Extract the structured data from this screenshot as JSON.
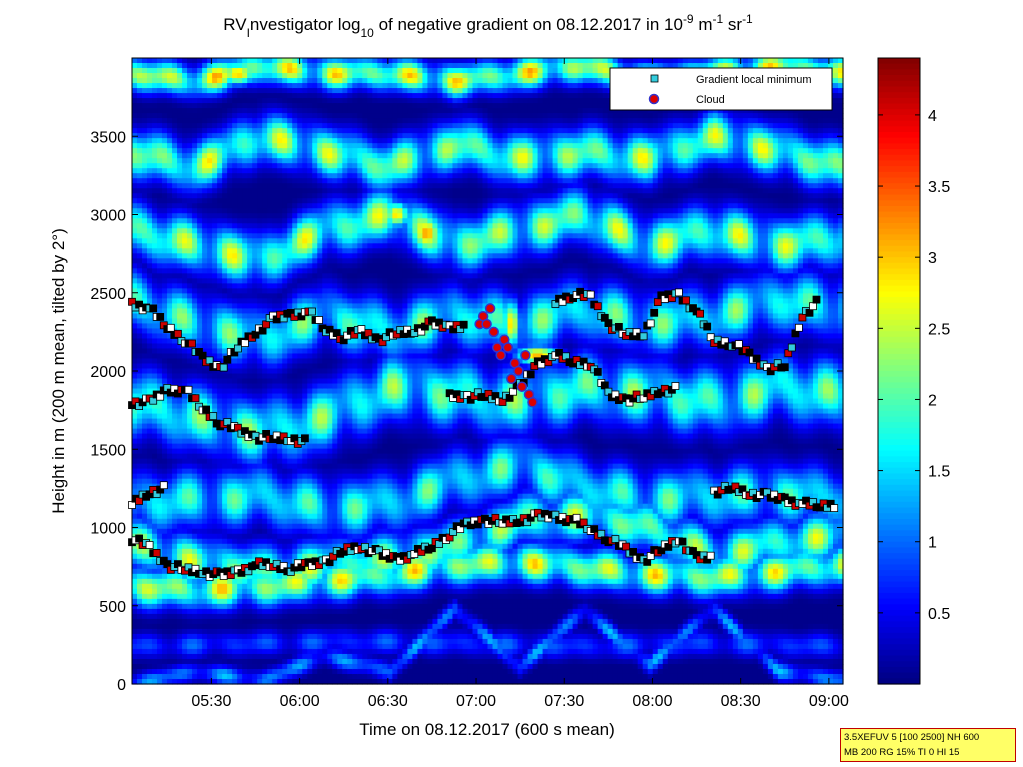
{
  "chart_data": {
    "type": "heatmap",
    "title_parts": {
      "prefix": "RV",
      "prefix_sub": "I",
      "part1": "nvestigator log",
      "sub1": "10",
      "part2": " of negative gradient on 08.12.2017 in 10",
      "sup1": "-9",
      "part3": " m",
      "sup2": "-1",
      "part4": " sr",
      "sup3": "-1"
    },
    "xlabel": "Time on 08.12.2017 (600 s mean)",
    "ylabel": "Height in m (200 m mean, tilted by 2°)",
    "x_unit": "hours",
    "xlim": [
      5.05,
      9.08
    ],
    "ylim": [
      0,
      4000
    ],
    "xticks": [
      {
        "v": 5.5,
        "label": "05:30"
      },
      {
        "v": 6.0,
        "label": "06:00"
      },
      {
        "v": 6.5,
        "label": "06:30"
      },
      {
        "v": 7.0,
        "label": "07:00"
      },
      {
        "v": 7.5,
        "label": "07:30"
      },
      {
        "v": 8.0,
        "label": "08:00"
      },
      {
        "v": 8.5,
        "label": "08:30"
      },
      {
        "v": 9.0,
        "label": "09:00"
      }
    ],
    "yticks": [
      {
        "v": 0,
        "label": "0"
      },
      {
        "v": 500,
        "label": "500"
      },
      {
        "v": 1000,
        "label": "1000"
      },
      {
        "v": 1500,
        "label": "1500"
      },
      {
        "v": 2000,
        "label": "2000"
      },
      {
        "v": 2500,
        "label": "2500"
      },
      {
        "v": 3000,
        "label": "3000"
      },
      {
        "v": 3500,
        "label": "3500"
      }
    ],
    "colorbar": {
      "range": [
        0,
        4.4
      ],
      "ticks": [
        {
          "v": 0.5,
          "label": "0.5"
        },
        {
          "v": 1,
          "label": "1"
        },
        {
          "v": 1.5,
          "label": "1.5"
        },
        {
          "v": 2,
          "label": "2"
        },
        {
          "v": 2.5,
          "label": "2.5"
        },
        {
          "v": 3,
          "label": "3"
        },
        {
          "v": 3.5,
          "label": "3.5"
        },
        {
          "v": 4,
          "label": "4"
        }
      ],
      "colormap": "jet"
    },
    "legend": {
      "position": "top-right",
      "items": [
        {
          "label": "Gradient local minimum",
          "marker": "square",
          "color": "#33ccdd"
        },
        {
          "label": "Cloud",
          "marker": "circle",
          "color": "#dd0000"
        }
      ]
    },
    "bands": [
      {
        "y": [
          0,
          80,
          20,
          180,
          80,
          480,
          110,
          470,
          120,
          480,
          80,
          20
        ],
        "v": 1.2,
        "thk": 60
      },
      {
        "y": [
          240,
          250,
          260,
          270,
          270,
          260,
          250,
          240,
          250,
          260,
          250,
          240
        ],
        "v": 0.9,
        "thk": 80
      },
      {
        "y": [
          620,
          600,
          620,
          660,
          700,
          760,
          780,
          740,
          700,
          680,
          720,
          760
        ],
        "v": 2.6,
        "thk": 120
      },
      {
        "y": [
          900,
          780,
          720,
          760,
          800,
          880,
          1050,
          1080,
          1000,
          820,
          900,
          950
        ],
        "v": 2.3,
        "thk": 150
      },
      {
        "y": [
          1150,
          1180,
          1200,
          1120,
          1150,
          1300,
          1400,
          1250,
          1180,
          1200,
          1220,
          1180
        ],
        "v": 1.9,
        "thk": 180
      },
      {
        "y": [
          1800,
          1700,
          1600,
          1700,
          1900,
          1850,
          1800,
          1900,
          1850,
          1800,
          1900,
          1850
        ],
        "v": 2.1,
        "thk": 200
      },
      {
        "y": [
          2450,
          2300,
          2200,
          2350,
          2250,
          2350,
          2300,
          2400,
          2300,
          2350,
          2450,
          2400
        ],
        "v": 2.0,
        "thk": 180
      },
      {
        "y": [
          2900,
          2800,
          2700,
          2900,
          3000,
          2800,
          2900,
          3000,
          2800,
          2900,
          2800,
          2850
        ],
        "v": 2.4,
        "thk": 160
      },
      {
        "y": [
          3400,
          3300,
          3500,
          3400,
          3300,
          3450,
          3350,
          3400,
          3350,
          3500,
          3400,
          3300
        ],
        "v": 2.4,
        "thk": 150
      },
      {
        "y": [
          3900,
          3850,
          3950,
          3900,
          3900,
          3850,
          3900,
          3950,
          3850,
          3900,
          3950,
          3900
        ],
        "v": 2.7,
        "thk": 100
      }
    ],
    "blobs": [
      {
        "x": 6.72,
        "y": 2880,
        "v": 3.2,
        "w": 0.08,
        "h": 110
      },
      {
        "x": 5.65,
        "y": 3900,
        "v": 3.0,
        "w": 0.1,
        "h": 70
      },
      {
        "x": 6.55,
        "y": 3000,
        "v": 2.9,
        "w": 0.07,
        "h": 80
      },
      {
        "x": 7.35,
        "y": 2100,
        "v": 3.1,
        "w": 0.12,
        "h": 60
      },
      {
        "x": 7.2,
        "y": 2300,
        "v": 2.9,
        "w": 0.05,
        "h": 150
      }
    ],
    "series": [
      {
        "name": "Gradient local minimum",
        "lines": [
          {
            "x": [
              5.05,
              5.15,
              5.25,
              5.35,
              5.45,
              5.55,
              5.65,
              5.75,
              5.85,
              5.95,
              6.05,
              6.15,
              6.25,
              6.35,
              6.45,
              6.55,
              6.65,
              6.75,
              6.85,
              6.95,
              7.05,
              7.15,
              7.25,
              7.35,
              7.45,
              7.55,
              7.65,
              7.75,
              7.85,
              7.95,
              8.05,
              8.15,
              8.25,
              8.35
            ],
            "y": [
              930,
              870,
              760,
              730,
              720,
              690,
              720,
              760,
              760,
              740,
              760,
              790,
              850,
              880,
              830,
              800,
              830,
              880,
              960,
              1020,
              1050,
              1030,
              1050,
              1070,
              1070,
              1050,
              990,
              930,
              860,
              790,
              860,
              930,
              800,
              810
            ]
          },
          {
            "x": [
              8.35,
              8.45,
              8.55,
              8.65,
              8.75,
              8.85,
              8.95,
              9.05
            ],
            "y": [
              1230,
              1250,
              1220,
              1200,
              1180,
              1150,
              1140,
              1150
            ]
          },
          {
            "x": [
              5.05,
              5.15,
              5.25,
              5.35,
              5.45,
              5.55,
              5.65,
              5.75,
              5.85,
              5.95,
              6.05
            ],
            "y": [
              1800,
              1800,
              1880,
              1880,
              1760,
              1670,
              1620,
              1580,
              1570,
              1570,
              1540
            ]
          },
          {
            "x": [
              5.05,
              5.15,
              5.25,
              5.35,
              5.45,
              5.55,
              5.65,
              5.75,
              5.85,
              5.95,
              6.05,
              6.15,
              6.25,
              6.35,
              6.45,
              6.55,
              6.65,
              6.75,
              6.85,
              6.95
            ],
            "y": [
              2430,
              2400,
              2280,
              2200,
              2080,
              2020,
              2150,
              2250,
              2330,
              2360,
              2380,
              2260,
              2220,
              2250,
              2200,
              2240,
              2260,
              2300,
              2280,
              2300
            ]
          },
          {
            "x": [
              7.45,
              7.55,
              7.65,
              7.75,
              7.85,
              7.95,
              8.05,
              8.15,
              8.25,
              8.35,
              8.45,
              8.55,
              8.65,
              8.75,
              8.85,
              8.95
            ],
            "y": [
              2440,
              2490,
              2470,
              2300,
              2230,
              2240,
              2460,
              2490,
              2380,
              2190,
              2180,
              2100,
              2020,
              2030,
              2360,
              2450
            ]
          },
          {
            "x": [
              6.85,
              6.95,
              7.05,
              7.15,
              7.25,
              7.35,
              7.45,
              7.55,
              7.65,
              7.75,
              7.85,
              7.95,
              8.05,
              8.15
            ],
            "y": [
              1840,
              1840,
              1840,
              1820,
              1900,
              2050,
              2100,
              2060,
              2050,
              1850,
              1820,
              1830,
              1880,
              1880
            ]
          },
          {
            "x": [
              5.05,
              5.15,
              5.25
            ],
            "y": [
              1150,
              1230,
              1250
            ]
          }
        ]
      },
      {
        "name": "Cloud",
        "x": [
          7.02,
          7.04,
          7.06,
          7.08,
          7.1,
          7.12,
          7.14,
          7.16,
          7.18,
          7.2,
          7.22,
          7.24,
          7.26,
          7.28,
          7.3,
          7.32
        ],
        "y": [
          2300,
          2350,
          2300,
          2400,
          2250,
          2150,
          2100,
          2200,
          2150,
          1950,
          2050,
          2000,
          1900,
          2100,
          1850,
          1800
        ]
      }
    ]
  },
  "param_box": {
    "line1": "3.5XEFUV 5 [100 2500] NH 600",
    "line2": "MB 200 RG 15% TI 0 HI 15"
  }
}
